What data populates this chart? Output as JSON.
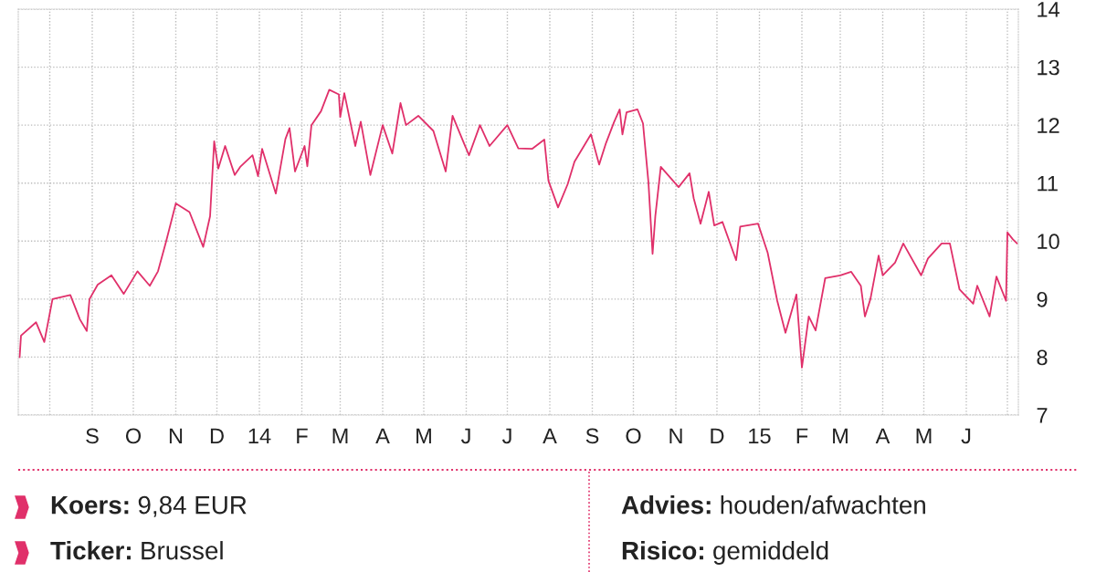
{
  "chart_data": {
    "type": "line",
    "x": [
      "2013-07-10",
      "2013-07-11",
      "2013-07-22",
      "2013-07-28",
      "2013-08-03",
      "2013-08-16",
      "2013-08-23",
      "2013-08-28",
      "2013-08-30",
      "2013-09-05",
      "2013-09-15",
      "2013-09-24",
      "2013-10-04",
      "2013-10-13",
      "2013-10-19",
      "2013-10-25",
      "2013-11-01",
      "2013-11-11",
      "2013-11-21",
      "2013-11-26",
      "2013-11-29",
      "2013-12-02",
      "2013-12-07",
      "2013-12-14",
      "2013-12-18",
      "2013-12-27",
      "2013-12-31",
      "2014-01-03",
      "2014-01-13",
      "2014-01-20",
      "2014-01-23",
      "2014-01-27",
      "2014-02-03",
      "2014-02-05",
      "2014-02-08",
      "2014-02-15",
      "2014-02-21",
      "2014-02-28",
      "2014-03-01",
      "2014-03-04",
      "2014-03-12",
      "2014-03-16",
      "2014-03-23",
      "2014-04-01",
      "2014-04-08",
      "2014-04-14",
      "2014-04-18",
      "2014-04-27",
      "2014-05-08",
      "2014-05-17",
      "2014-05-22",
      "2014-06-03",
      "2014-06-11",
      "2014-06-18",
      "2014-07-01",
      "2014-07-09",
      "2014-07-19",
      "2014-07-28",
      "2014-07-31",
      "2014-08-07",
      "2014-08-14",
      "2014-08-19",
      "2014-08-31",
      "2014-09-06",
      "2014-09-11",
      "2014-09-17",
      "2014-09-21",
      "2014-09-23",
      "2014-09-26",
      "2014-10-04",
      "2014-10-08",
      "2014-10-12",
      "2014-10-15",
      "2014-10-17",
      "2014-10-21",
      "2014-11-03",
      "2014-11-11",
      "2014-11-14",
      "2014-11-19",
      "2014-11-25",
      "2014-11-29",
      "2014-12-05",
      "2014-12-15",
      "2014-12-18",
      "2014-12-31",
      "2015-01-07",
      "2015-01-14",
      "2015-01-20",
      "2015-01-28",
      "2015-02-01",
      "2015-02-06",
      "2015-02-11",
      "2015-02-18",
      "2015-03-01",
      "2015-03-09",
      "2015-03-16",
      "2015-03-19",
      "2015-03-23",
      "2015-03-29",
      "2015-04-01",
      "2015-04-10",
      "2015-04-16",
      "2015-04-29",
      "2015-05-04",
      "2015-05-14",
      "2015-05-20",
      "2015-05-27",
      "2015-06-06",
      "2015-06-09",
      "2015-06-18",
      "2015-06-23",
      "2015-06-30",
      "2015-07-01",
      "2015-07-05",
      "2015-07-08"
    ],
    "series": [
      {
        "color": "#e0306a",
        "values": [
          8.0,
          8.37,
          8.6,
          8.26,
          9.0,
          9.07,
          8.65,
          8.45,
          9.0,
          9.25,
          9.41,
          9.09,
          9.48,
          9.23,
          9.48,
          10.0,
          10.65,
          10.5,
          9.9,
          10.43,
          11.72,
          11.25,
          11.64,
          11.14,
          11.28,
          11.48,
          11.12,
          11.59,
          10.82,
          11.76,
          11.95,
          11.2,
          11.64,
          11.29,
          12.0,
          12.24,
          12.61,
          12.53,
          12.14,
          12.55,
          11.64,
          12.06,
          11.14,
          12.0,
          11.51,
          12.38,
          12.0,
          12.16,
          11.9,
          11.2,
          12.16,
          11.48,
          12.0,
          11.64,
          12.0,
          11.6,
          11.59,
          11.75,
          11.04,
          10.58,
          10.98,
          11.37,
          11.84,
          11.32,
          11.69,
          12.06,
          12.27,
          11.84,
          12.22,
          12.27,
          12.03,
          11.01,
          9.78,
          10.43,
          11.28,
          10.93,
          11.17,
          10.74,
          10.3,
          10.85,
          10.27,
          10.33,
          9.67,
          10.25,
          10.3,
          9.8,
          8.97,
          8.42,
          9.08,
          7.82,
          8.7,
          8.46,
          9.36,
          9.41,
          9.47,
          9.23,
          8.7,
          9.0,
          9.75,
          9.41,
          9.63,
          9.96,
          9.41,
          9.7,
          9.96,
          9.96,
          9.17,
          8.92,
          9.23,
          8.7,
          9.39,
          8.97,
          10.15,
          10.03,
          9.96
        ]
      }
    ],
    "xlim": [
      "2013-07-09",
      "2015-07-09"
    ],
    "xticks": [
      {
        "value": "2013-08-01",
        "label": null
      },
      {
        "value": "2013-09-01",
        "label": "S"
      },
      {
        "value": "2013-10-01",
        "label": "O"
      },
      {
        "value": "2013-11-01",
        "label": "N"
      },
      {
        "value": "2013-12-01",
        "label": "D"
      },
      {
        "value": "2014-01-01",
        "label": "14"
      },
      {
        "value": "2014-02-01",
        "label": "F"
      },
      {
        "value": "2014-03-01",
        "label": "M"
      },
      {
        "value": "2014-04-01",
        "label": "A"
      },
      {
        "value": "2014-05-01",
        "label": "M"
      },
      {
        "value": "2014-06-01",
        "label": "J"
      },
      {
        "value": "2014-07-01",
        "label": "J"
      },
      {
        "value": "2014-08-01",
        "label": "A"
      },
      {
        "value": "2014-09-01",
        "label": "S"
      },
      {
        "value": "2014-10-01",
        "label": "O"
      },
      {
        "value": "2014-11-01",
        "label": "N"
      },
      {
        "value": "2014-12-01",
        "label": "D"
      },
      {
        "value": "2015-01-01",
        "label": "15"
      },
      {
        "value": "2015-02-01",
        "label": "F"
      },
      {
        "value": "2015-03-01",
        "label": "M"
      },
      {
        "value": "2015-04-01",
        "label": "A"
      },
      {
        "value": "2015-05-01",
        "label": "M"
      },
      {
        "value": "2015-06-01",
        "label": "J"
      },
      {
        "value": "2015-07-01",
        "label": null
      }
    ],
    "ylim": [
      7,
      14
    ],
    "yticks": [
      7,
      8,
      9,
      10,
      11,
      12,
      13,
      14
    ],
    "grid": true,
    "annotations": [
      "Koers: 9,84 EUR",
      "Ticker: Brussel",
      "Advies: houden/afwachten",
      "Risico: gemiddeld"
    ]
  }
}
